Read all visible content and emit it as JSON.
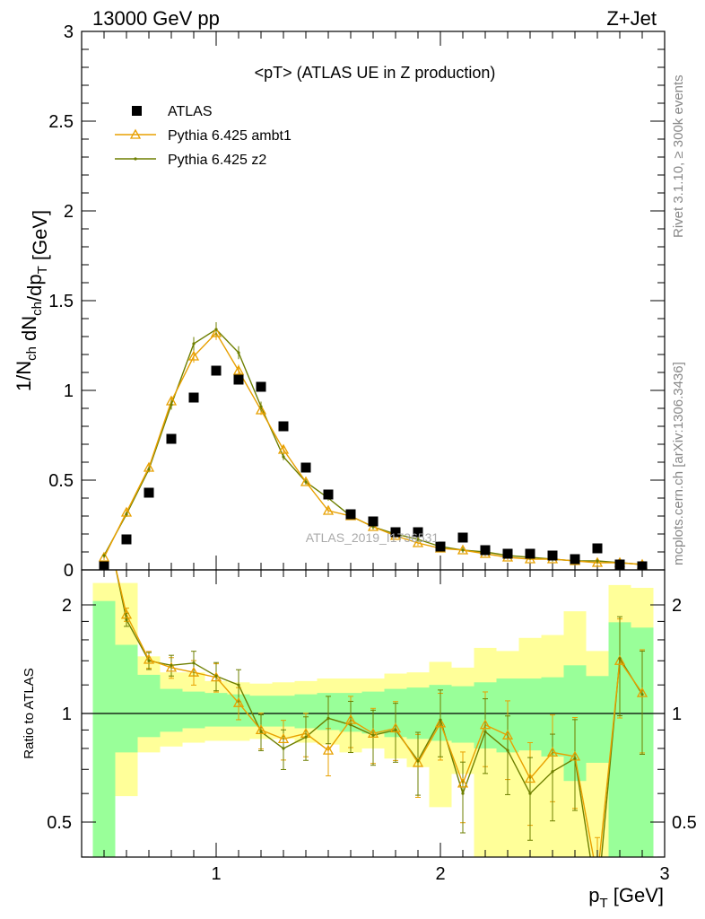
{
  "header": {
    "left": "13000 GeV pp",
    "right": "Z+Jet"
  },
  "side_labels": {
    "rivet": "Rivet 3.1.10, ≥ 300k events",
    "mcplots": "mcplots.cern.ch [arXiv:1306.3436]"
  },
  "chart_data": [
    {
      "type": "scatter",
      "title": "<pT> (ATLAS UE in Z production)",
      "watermark": "ATLAS_2019_I1736531",
      "ylabel": "1/N_ch dN_ch/dp_T [GeV]",
      "xlabel": "p_T [GeV]",
      "xlim": [
        0.4,
        3.0
      ],
      "ylim": [
        0,
        3.0
      ],
      "yticks": [
        "0",
        "0.5",
        "1",
        "1.5",
        "2",
        "2.5",
        "3"
      ],
      "legend": [
        "ATLAS",
        "Pythia 6.425 ambt1",
        "Pythia 6.425 z2"
      ],
      "legend_position": "top-left",
      "colors": {
        "ATLAS": "#000000",
        "ambt1": "#e8a000",
        "z2": "#6e7f00"
      },
      "x": [
        0.5,
        0.6,
        0.7,
        0.8,
        0.9,
        1.0,
        1.1,
        1.2,
        1.3,
        1.4,
        1.5,
        1.6,
        1.7,
        1.8,
        1.9,
        2.0,
        2.1,
        2.2,
        2.3,
        2.4,
        2.5,
        2.6,
        2.7,
        2.8,
        2.9
      ],
      "series": [
        {
          "name": "ATLAS",
          "values": [
            0.02,
            0.17,
            0.43,
            0.73,
            0.96,
            1.11,
            1.06,
            1.02,
            0.8,
            0.57,
            0.42,
            0.31,
            0.27,
            0.21,
            0.21,
            0.13,
            0.18,
            0.11,
            0.09,
            0.09,
            0.08,
            0.06,
            0.12,
            0.03,
            0.02
          ]
        },
        {
          "name": "Pythia 6.425 ambt1",
          "values": [
            0.07,
            0.32,
            0.57,
            0.94,
            1.19,
            1.32,
            1.11,
            0.89,
            0.67,
            0.49,
            0.33,
            0.3,
            0.24,
            0.19,
            0.15,
            0.12,
            0.11,
            0.09,
            0.07,
            0.06,
            0.06,
            0.05,
            0.04,
            0.04,
            0.03
          ]
        },
        {
          "name": "Pythia 6.425 z2",
          "values": [
            0.08,
            0.31,
            0.56,
            0.92,
            1.26,
            1.34,
            1.21,
            0.91,
            0.63,
            0.49,
            0.4,
            0.3,
            0.24,
            0.2,
            0.17,
            0.13,
            0.11,
            0.1,
            0.08,
            0.07,
            0.06,
            0.05,
            0.05,
            0.04,
            0.03
          ]
        }
      ]
    },
    {
      "type": "line",
      "ylabel": "Ratio to ATLAS",
      "xlabel": "p_T [GeV]",
      "xlim": [
        0.4,
        3.0
      ],
      "ylim": [
        0.35,
        2.3
      ],
      "yticks": [
        "0.5",
        "1",
        "2"
      ],
      "xticks": [
        "1",
        "2",
        "3"
      ],
      "x": [
        0.5,
        0.6,
        0.7,
        0.8,
        0.9,
        1.0,
        1.1,
        1.2,
        1.3,
        1.4,
        1.5,
        1.6,
        1.7,
        1.8,
        1.9,
        2.0,
        2.1,
        2.2,
        2.3,
        2.4,
        2.5,
        2.6,
        2.7,
        2.8,
        2.9
      ],
      "band_inner": [
        [
          0.35,
          2.05
        ],
        [
          0.78,
          1.55
        ],
        [
          0.86,
          1.28
        ],
        [
          0.89,
          1.17
        ],
        [
          0.91,
          1.15
        ],
        [
          0.92,
          1.14
        ],
        [
          0.92,
          1.13
        ],
        [
          0.92,
          1.12
        ],
        [
          0.92,
          1.12
        ],
        [
          0.91,
          1.13
        ],
        [
          0.9,
          1.14
        ],
        [
          0.89,
          1.14
        ],
        [
          0.88,
          1.15
        ],
        [
          0.86,
          1.17
        ],
        [
          0.85,
          1.18
        ],
        [
          0.84,
          1.2
        ],
        [
          0.83,
          1.19
        ],
        [
          0.8,
          1.22
        ],
        [
          0.78,
          1.25
        ],
        [
          0.79,
          1.25
        ],
        [
          0.76,
          1.26
        ],
        [
          0.65,
          1.36
        ],
        [
          0.73,
          1.27
        ],
        [
          0.35,
          1.79
        ],
        [
          0.35,
          1.73
        ]
      ],
      "band_outer": [
        [
          0.35,
          2.3
        ],
        [
          0.59,
          2.3
        ],
        [
          0.78,
          1.44
        ],
        [
          0.81,
          1.3
        ],
        [
          0.83,
          1.3
        ],
        [
          0.84,
          1.23
        ],
        [
          0.84,
          1.22
        ],
        [
          0.85,
          1.21
        ],
        [
          0.85,
          1.22
        ],
        [
          0.83,
          1.23
        ],
        [
          0.82,
          1.25
        ],
        [
          0.78,
          1.25
        ],
        [
          0.8,
          1.25
        ],
        [
          0.75,
          1.29
        ],
        [
          0.71,
          1.3
        ],
        [
          0.55,
          1.39
        ],
        [
          0.68,
          1.34
        ],
        [
          0.4,
          1.52
        ],
        [
          0.4,
          1.49
        ],
        [
          0.35,
          1.62
        ],
        [
          0.38,
          1.65
        ],
        [
          0.35,
          1.92
        ],
        [
          0.35,
          1.49
        ],
        [
          0.35,
          2.27
        ],
        [
          0.35,
          2.23
        ]
      ],
      "series": [
        {
          "name": "Pythia 6.425 ambt1",
          "values": [
            3.5,
            1.88,
            1.41,
            1.34,
            1.3,
            1.26,
            1.07,
            0.9,
            0.85,
            0.88,
            0.79,
            0.96,
            0.88,
            0.91,
            0.73,
            0.94,
            0.64,
            0.93,
            0.87,
            0.66,
            0.78,
            0.76,
            0.35,
            1.4,
            1.14
          ]
        },
        {
          "name": "Pythia 6.425 z2",
          "values": [
            3.6,
            1.82,
            1.4,
            1.36,
            1.38,
            1.27,
            1.2,
            0.89,
            0.8,
            0.86,
            0.97,
            0.93,
            0.87,
            0.9,
            0.74,
            0.96,
            0.6,
            0.89,
            0.79,
            0.6,
            0.69,
            0.75,
            0.3,
            1.42,
            1.13
          ]
        }
      ]
    }
  ]
}
